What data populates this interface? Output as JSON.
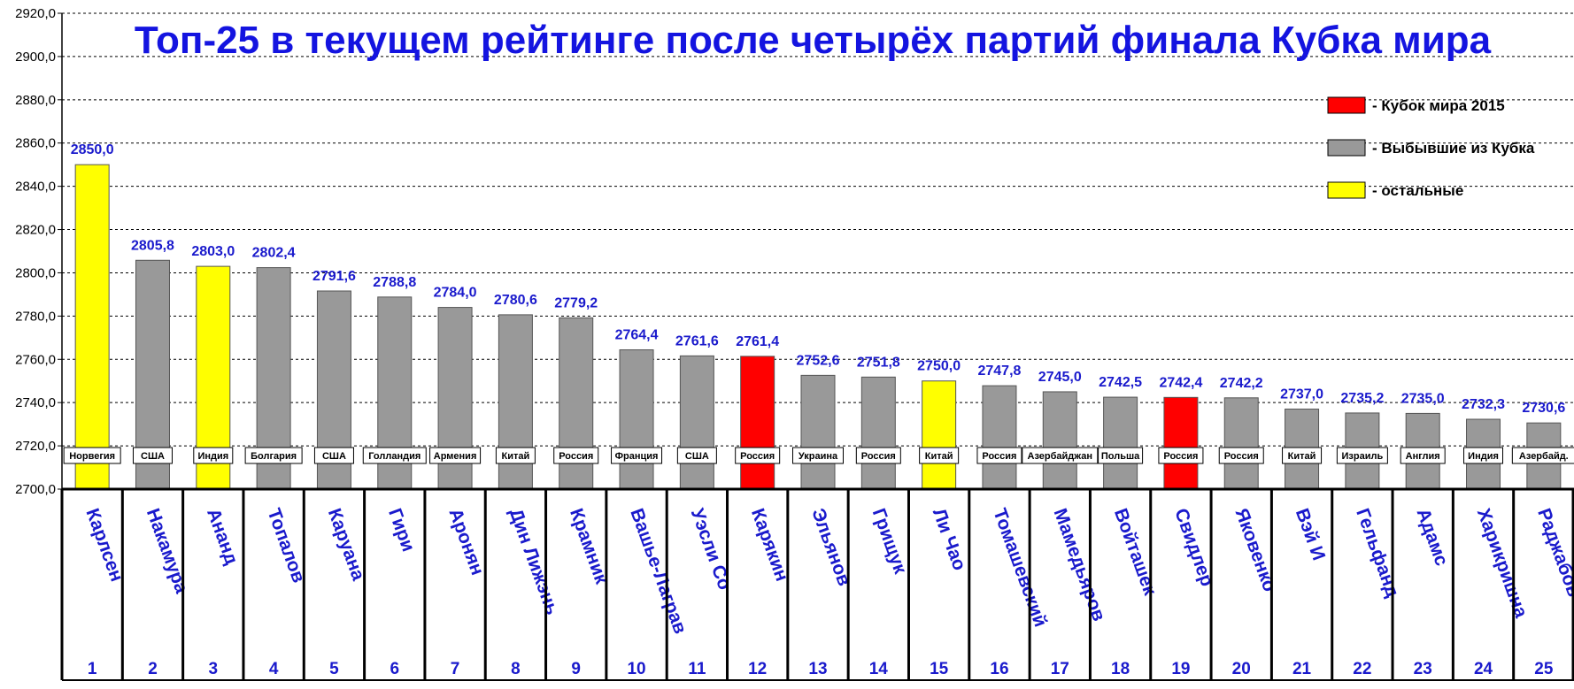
{
  "chart_data": {
    "type": "bar",
    "title": "Топ-25 в текущем рейтинге после четырёх партий финала Кубка мира",
    "ylim": [
      2700,
      2920
    ],
    "ytick_step": 20,
    "y_tick_labels": [
      "2700,0",
      "2720,0",
      "2740,0",
      "2760,0",
      "2780,0",
      "2800,0",
      "2820,0",
      "2840,0",
      "2860,0",
      "2880,0",
      "2900,0",
      "2920,0"
    ],
    "grid": true,
    "legend_position": "top-right",
    "legend": [
      {
        "label": "- Кубок мира 2015",
        "group": "cup",
        "color": "#ff0000"
      },
      {
        "label": "- Выбывшие из Кубка",
        "group": "out",
        "color": "#999999"
      },
      {
        "label": "- остальные",
        "group": "rest",
        "color": "#ffff00"
      }
    ],
    "players": [
      {
        "rank": "1",
        "name": "Карлсен",
        "country": "Норвегия",
        "value": 2850.0,
        "label": "2850,0",
        "group": "rest"
      },
      {
        "rank": "2",
        "name": "Накамура",
        "country": "США",
        "value": 2805.8,
        "label": "2805,8",
        "group": "out"
      },
      {
        "rank": "3",
        "name": "Ананд",
        "country": "Индия",
        "value": 2803.0,
        "label": "2803,0",
        "group": "rest"
      },
      {
        "rank": "4",
        "name": "Топалов",
        "country": "Болгария",
        "value": 2802.4,
        "label": "2802,4",
        "group": "out"
      },
      {
        "rank": "5",
        "name": "Каруана",
        "country": "США",
        "value": 2791.6,
        "label": "2791,6",
        "group": "out"
      },
      {
        "rank": "6",
        "name": "Гири",
        "country": "Голландия",
        "value": 2788.8,
        "label": "2788,8",
        "group": "out"
      },
      {
        "rank": "7",
        "name": "Аронян",
        "country": "Армения",
        "value": 2784.0,
        "label": "2784,0",
        "group": "out"
      },
      {
        "rank": "8",
        "name": "Дин Лижэнь",
        "country": "Китай",
        "value": 2780.6,
        "label": "2780,6",
        "group": "out"
      },
      {
        "rank": "9",
        "name": "Крамник",
        "country": "Россия",
        "value": 2779.2,
        "label": "2779,2",
        "group": "out"
      },
      {
        "rank": "10",
        "name": "Вашье-Лаграв",
        "country": "Франция",
        "value": 2764.4,
        "label": "2764,4",
        "group": "out"
      },
      {
        "rank": "11",
        "name": "Уэсли Со",
        "country": "США",
        "value": 2761.6,
        "label": "2761,6",
        "group": "out"
      },
      {
        "rank": "12",
        "name": "Карякин",
        "country": "Россия",
        "value": 2761.4,
        "label": "2761,4",
        "group": "cup"
      },
      {
        "rank": "13",
        "name": "Эльянов",
        "country": "Украина",
        "value": 2752.6,
        "label": "2752,6",
        "group": "out"
      },
      {
        "rank": "14",
        "name": "Грищук",
        "country": "Россия",
        "value": 2751.8,
        "label": "2751,8",
        "group": "out"
      },
      {
        "rank": "15",
        "name": "Ли Чао",
        "country": "Китай",
        "value": 2750.0,
        "label": "2750,0",
        "group": "rest"
      },
      {
        "rank": "16",
        "name": "Томашевский",
        "country": "Россия",
        "value": 2747.8,
        "label": "2747,8",
        "group": "out"
      },
      {
        "rank": "17",
        "name": "Мамедьяров",
        "country": "Азербайджан",
        "value": 2745.0,
        "label": "2745,0",
        "group": "out"
      },
      {
        "rank": "18",
        "name": "Войташек",
        "country": "Польша",
        "value": 2742.5,
        "label": "2742,5",
        "group": "out"
      },
      {
        "rank": "19",
        "name": "Свидлер",
        "country": "Россия",
        "value": 2742.4,
        "label": "2742,4",
        "group": "cup"
      },
      {
        "rank": "20",
        "name": "Яковенко",
        "country": "Россия",
        "value": 2742.2,
        "label": "2742,2",
        "group": "out"
      },
      {
        "rank": "21",
        "name": "Вэй И",
        "country": "Китай",
        "value": 2737.0,
        "label": "2737,0",
        "group": "out"
      },
      {
        "rank": "22",
        "name": "Гельфанд",
        "country": "Израиль",
        "value": 2735.2,
        "label": "2735,2",
        "group": "out"
      },
      {
        "rank": "23",
        "name": "Адамс",
        "country": "Англия",
        "value": 2735.0,
        "label": "2735,0",
        "group": "out"
      },
      {
        "rank": "24",
        "name": "Харикришна",
        "country": "Индия",
        "value": 2732.3,
        "label": "2732,3",
        "group": "out"
      },
      {
        "rank": "25",
        "name": "Раджабов",
        "country": "Азербайд.",
        "value": 2730.6,
        "label": "2730,6",
        "group": "out"
      }
    ]
  }
}
